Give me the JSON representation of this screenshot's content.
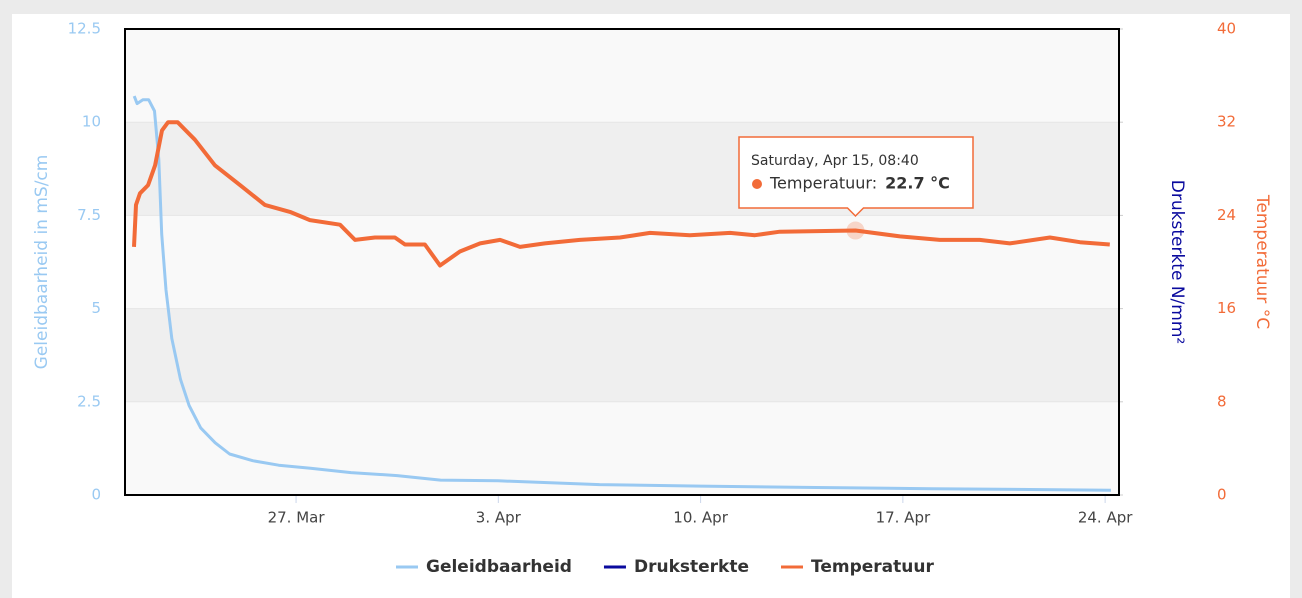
{
  "chart_data": {
    "type": "line",
    "ylabel": "Geleidbaarheid in mS/cm",
    "ylim": [
      0,
      12.5
    ],
    "yticks": [
      0,
      2.5,
      5,
      7.5,
      10,
      12.5
    ],
    "y2label": "Temperatuur °C",
    "y2lim": [
      0,
      40
    ],
    "y2ticks": [
      0,
      8,
      16,
      24,
      32,
      40
    ],
    "y3label": "Druksterkte N/mm²",
    "xlim": [
      80.08,
      114.48
    ],
    "xticks": [
      {
        "value": 86,
        "label": "27. Mar"
      },
      {
        "value": 93,
        "label": "3. Apr"
      },
      {
        "value": 100,
        "label": "10. Apr"
      },
      {
        "value": 107,
        "label": "17. Apr"
      },
      {
        "value": 114,
        "label": "24. Apr"
      }
    ],
    "legend": "bottom",
    "series": [
      {
        "name": "Geleidbaarheid",
        "color": "#99c9f2",
        "axis": "y",
        "x": [
          80.4,
          80.5,
          80.7,
          80.9,
          81.1,
          81.25,
          81.35,
          81.5,
          81.7,
          82.0,
          82.3,
          82.7,
          83.2,
          83.7,
          84.5,
          85.4,
          86.5,
          87.9,
          89.5,
          91,
          93,
          96.5,
          100,
          104,
          108,
          114.2
        ],
        "values": [
          10.7,
          10.5,
          10.6,
          10.6,
          10.3,
          9.0,
          7.0,
          5.5,
          4.2,
          3.1,
          2.4,
          1.8,
          1.4,
          1.1,
          0.92,
          0.8,
          0.72,
          0.6,
          0.52,
          0.4,
          0.38,
          0.28,
          0.24,
          0.2,
          0.17,
          0.13
        ]
      },
      {
        "name": "Druksterkte",
        "color": "#0a0a9e",
        "axis": "y3",
        "x": [],
        "values": []
      },
      {
        "name": "Temperatuur",
        "color": "#f26b38",
        "axis": "y2",
        "x": [
          80.39,
          80.46,
          80.6,
          80.88,
          81.12,
          81.36,
          81.57,
          81.9,
          82.5,
          83.19,
          84.06,
          84.92,
          85.79,
          86.48,
          87.52,
          88.04,
          88.73,
          89.42,
          89.77,
          90.46,
          90.98,
          91.67,
          92.37,
          93.06,
          93.75,
          94.61,
          95.82,
          97.21,
          98.25,
          99.63,
          101.02,
          101.88,
          102.74,
          105.36,
          106.9,
          108.28,
          109.66,
          110.7,
          112.09,
          113.13,
          114.16
        ],
        "values": [
          21.3,
          24.9,
          25.9,
          26.6,
          28.3,
          31.3,
          32.0,
          32.0,
          30.5,
          28.3,
          26.6,
          24.9,
          24.3,
          23.6,
          23.2,
          21.9,
          22.1,
          22.1,
          21.5,
          21.5,
          19.7,
          20.9,
          21.6,
          21.9,
          21.3,
          21.6,
          21.9,
          22.1,
          22.5,
          22.3,
          22.5,
          22.3,
          22.6,
          22.7,
          22.2,
          21.9,
          21.9,
          21.6,
          22.1,
          21.7,
          21.5
        ]
      }
    ],
    "tooltip": {
      "header": "Saturday, Apr 15, 08:40",
      "label": "Temperatuur:",
      "x": 105.36,
      "value": 22.7,
      "value_label": "22.7 °C",
      "series": 2
    }
  }
}
